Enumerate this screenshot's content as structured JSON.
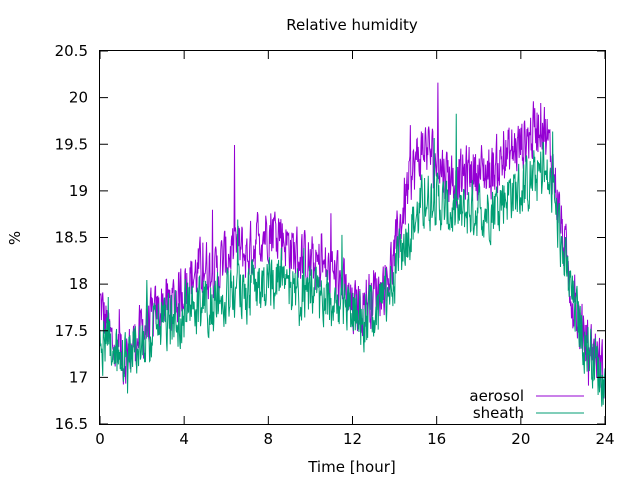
{
  "chart_data": {
    "type": "line",
    "title": "Relative humidity",
    "xlabel": "Time [hour]",
    "ylabel": "%",
    "xlim": [
      0,
      24
    ],
    "ylim": [
      16.5,
      20.5
    ],
    "xticks": [
      "0",
      "4",
      "8",
      "12",
      "16",
      "20",
      "24"
    ],
    "yticks": [
      "16.5",
      "17",
      "17.5",
      "18",
      "18.5",
      "19",
      "19.5",
      "20",
      "20.5"
    ],
    "grid": false,
    "legend_position": "bottom-right",
    "series": [
      {
        "name": "aerosol",
        "color": "#9400d3",
        "x": [
          0,
          0.5,
          1,
          1.5,
          2,
          2.5,
          3,
          3.5,
          4,
          4.5,
          5,
          5.5,
          6,
          6.5,
          7,
          7.5,
          8,
          8.5,
          9,
          9.5,
          10,
          10.5,
          11,
          11.5,
          12,
          12.5,
          13,
          13.5,
          14,
          14.5,
          15,
          15.5,
          16,
          16.5,
          17,
          17.5,
          18,
          18.5,
          19,
          19.5,
          20,
          20.5,
          21,
          21.5,
          22,
          22.5,
          23,
          23.5,
          24
        ],
        "y": [
          17.8,
          17.4,
          17.2,
          17.3,
          17.5,
          17.6,
          17.8,
          17.8,
          18.0,
          18.1,
          18.2,
          18.1,
          18.3,
          18.4,
          18.3,
          18.5,
          18.6,
          18.6,
          18.4,
          18.3,
          18.2,
          18.2,
          18.1,
          18.0,
          17.7,
          17.8,
          17.9,
          18.0,
          18.3,
          18.9,
          19.3,
          19.5,
          19.3,
          19.2,
          19.1,
          19.2,
          19.2,
          19.2,
          19.3,
          19.4,
          19.5,
          19.6,
          19.8,
          19.3,
          18.5,
          17.8,
          17.4,
          17.3,
          17.0
        ]
      },
      {
        "name": "sheath",
        "color": "#009e73",
        "x": [
          0,
          0.5,
          1,
          1.5,
          2,
          2.5,
          3,
          3.5,
          4,
          4.5,
          5,
          5.5,
          6,
          6.5,
          7,
          7.5,
          8,
          8.5,
          9,
          9.5,
          10,
          10.5,
          11,
          11.5,
          12,
          12.5,
          13,
          13.5,
          14,
          14.5,
          15,
          15.5,
          16,
          16.5,
          17,
          17.5,
          18,
          18.5,
          19,
          19.5,
          20,
          20.5,
          21,
          21.5,
          22,
          22.5,
          23,
          23.5,
          24
        ],
        "y": [
          17.4,
          17.3,
          17.2,
          17.3,
          17.4,
          17.5,
          17.6,
          17.6,
          17.7,
          17.7,
          17.8,
          17.8,
          17.9,
          17.9,
          17.9,
          18.0,
          18.0,
          18.1,
          18.0,
          17.9,
          17.9,
          17.8,
          17.8,
          17.8,
          17.7,
          17.6,
          17.6,
          17.8,
          18.1,
          18.5,
          18.7,
          18.9,
          18.9,
          18.8,
          18.7,
          18.8,
          18.8,
          18.8,
          18.9,
          19.0,
          19.0,
          19.1,
          19.2,
          19.0,
          18.3,
          17.8,
          17.4,
          17.2,
          16.9
        ]
      }
    ]
  }
}
